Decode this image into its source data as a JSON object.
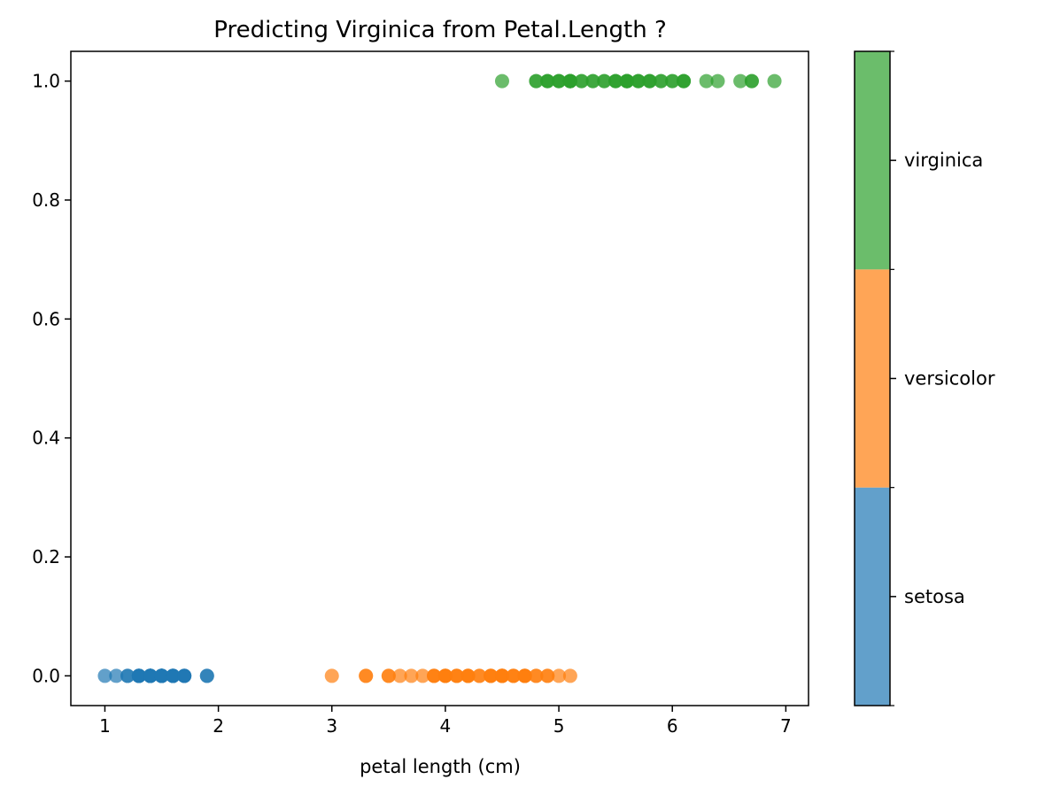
{
  "chart_data": {
    "type": "scatter",
    "title": "Predicting Virginica from Petal.Length ?",
    "xlabel": "petal length (cm)",
    "ylabel": "",
    "xlim": [
      0.7,
      7.2
    ],
    "ylim": [
      -0.05,
      1.05
    ],
    "xticks": [
      "1",
      "2",
      "3",
      "4",
      "5",
      "6",
      "7"
    ],
    "yticks": [
      "0.0",
      "0.2",
      "0.4",
      "0.6",
      "0.8",
      "1.0"
    ],
    "grid": false,
    "marker_alpha": 0.7,
    "colorbar": {
      "labels": [
        "setosa",
        "versicolor",
        "virginica"
      ],
      "colors": [
        "#1f77b4",
        "#ff7f0e",
        "#2ca02c"
      ]
    },
    "series": [
      {
        "name": "setosa",
        "color": "#1f77b4",
        "y": 0,
        "x": [
          1.0,
          1.1,
          1.2,
          1.2,
          1.3,
          1.3,
          1.3,
          1.3,
          1.3,
          1.3,
          1.3,
          1.4,
          1.4,
          1.4,
          1.4,
          1.4,
          1.4,
          1.4,
          1.4,
          1.4,
          1.4,
          1.4,
          1.4,
          1.4,
          1.5,
          1.5,
          1.5,
          1.5,
          1.5,
          1.5,
          1.5,
          1.5,
          1.5,
          1.5,
          1.5,
          1.5,
          1.5,
          1.6,
          1.6,
          1.6,
          1.6,
          1.6,
          1.6,
          1.6,
          1.7,
          1.7,
          1.7,
          1.7,
          1.9,
          1.9
        ]
      },
      {
        "name": "versicolor",
        "color": "#ff7f0e",
        "y": 0,
        "x": [
          3.0,
          3.3,
          3.3,
          3.5,
          3.5,
          3.6,
          3.7,
          3.8,
          3.9,
          3.9,
          3.9,
          4.0,
          4.0,
          4.0,
          4.0,
          4.0,
          4.1,
          4.1,
          4.1,
          4.2,
          4.2,
          4.2,
          4.2,
          4.3,
          4.3,
          4.4,
          4.4,
          4.4,
          4.4,
          4.5,
          4.5,
          4.5,
          4.5,
          4.5,
          4.5,
          4.5,
          4.6,
          4.6,
          4.6,
          4.7,
          4.7,
          4.7,
          4.7,
          4.7,
          4.8,
          4.8,
          4.9,
          4.9,
          5.0,
          5.1
        ]
      },
      {
        "name": "virginica",
        "color": "#2ca02c",
        "y": 1,
        "x": [
          4.5,
          4.8,
          4.8,
          4.9,
          4.9,
          4.9,
          5.0,
          5.0,
          5.0,
          5.1,
          5.1,
          5.1,
          5.1,
          5.1,
          5.1,
          5.1,
          5.2,
          5.2,
          5.3,
          5.3,
          5.4,
          5.4,
          5.5,
          5.5,
          5.5,
          5.6,
          5.6,
          5.6,
          5.6,
          5.6,
          5.6,
          5.7,
          5.7,
          5.7,
          5.8,
          5.8,
          5.8,
          5.9,
          5.9,
          6.0,
          6.0,
          6.1,
          6.1,
          6.1,
          6.3,
          6.4,
          6.6,
          6.7,
          6.7,
          6.9
        ]
      }
    ]
  }
}
